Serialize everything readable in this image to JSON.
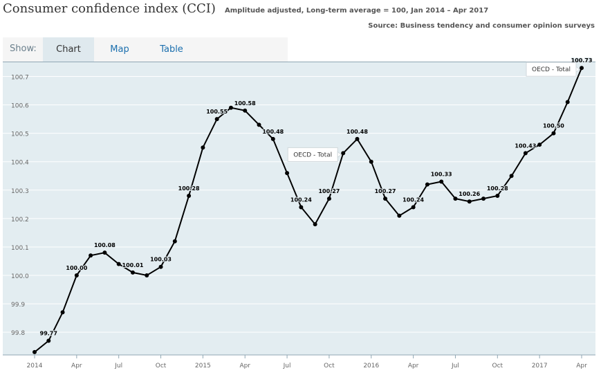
{
  "header": {
    "title": "Consumer confidence index (CCI)",
    "subtitle": "Amplitude adjusted, Long-term average = 100, Jan 2014 – Apr 2017",
    "source": "Source: Business tendency and consumer opinion surveys"
  },
  "tabs": {
    "show_label": "Show:",
    "items": [
      {
        "label": "Chart",
        "active": true
      },
      {
        "label": "Map",
        "active": false
      },
      {
        "label": "Table",
        "active": false
      }
    ]
  },
  "colors": {
    "plot_background": "#e3edf1",
    "line": "#000000",
    "gridline": "#ffffff",
    "tab_link": "#1b6fae"
  },
  "chart_data": {
    "type": "line",
    "grid": true,
    "x_ticks": [
      "2014",
      "Apr",
      "Jul",
      "Oct",
      "2015",
      "Apr",
      "Jul",
      "Oct",
      "2016",
      "Apr",
      "Jul",
      "Oct",
      "2017",
      "Apr"
    ],
    "y_ticks": [
      "99.8",
      "99.9",
      "100.0",
      "100.1",
      "100.2",
      "100.3",
      "100.4",
      "100.5",
      "100.6",
      "100.7"
    ],
    "ylim": [
      99.72,
      100.75
    ],
    "series": [
      {
        "name": "OECD - Total",
        "x": [
          "2014-01",
          "2014-02",
          "2014-03",
          "2014-04",
          "2014-05",
          "2014-06",
          "2014-07",
          "2014-08",
          "2014-09",
          "2014-10",
          "2014-11",
          "2014-12",
          "2015-01",
          "2015-02",
          "2015-03",
          "2015-04",
          "2015-05",
          "2015-06",
          "2015-07",
          "2015-08",
          "2015-09",
          "2015-10",
          "2015-11",
          "2015-12",
          "2016-01",
          "2016-02",
          "2016-03",
          "2016-04",
          "2016-05",
          "2016-06",
          "2016-07",
          "2016-08",
          "2016-09",
          "2016-10",
          "2016-11",
          "2016-12",
          "2017-01",
          "2017-02",
          "2017-03",
          "2017-04"
        ],
        "values": [
          99.73,
          99.77,
          99.87,
          100.0,
          100.07,
          100.08,
          100.04,
          100.01,
          100.0,
          100.03,
          100.12,
          100.28,
          100.45,
          100.55,
          100.59,
          100.58,
          100.53,
          100.48,
          100.36,
          100.24,
          100.18,
          100.27,
          100.43,
          100.48,
          100.4,
          100.27,
          100.21,
          100.24,
          100.32,
          100.33,
          100.27,
          100.26,
          100.27,
          100.28,
          100.35,
          100.43,
          100.46,
          100.5,
          100.61,
          100.73
        ]
      }
    ],
    "data_labels": [
      {
        "index": 1,
        "text": "99.77"
      },
      {
        "index": 3,
        "text": "100.00"
      },
      {
        "index": 5,
        "text": "100.08"
      },
      {
        "index": 7,
        "text": "100.01"
      },
      {
        "index": 9,
        "text": "100.03"
      },
      {
        "index": 11,
        "text": "100.28"
      },
      {
        "index": 13,
        "text": "100.55"
      },
      {
        "index": 15,
        "text": "100.58"
      },
      {
        "index": 17,
        "text": "100.48"
      },
      {
        "index": 19,
        "text": "100.24"
      },
      {
        "index": 21,
        "text": "100.27"
      },
      {
        "index": 23,
        "text": "100.48"
      },
      {
        "index": 25,
        "text": "100.27"
      },
      {
        "index": 27,
        "text": "100.24"
      },
      {
        "index": 29,
        "text": "100.33"
      },
      {
        "index": 31,
        "text": "100.26"
      },
      {
        "index": 33,
        "text": "100.28"
      },
      {
        "index": 35,
        "text": "100.43"
      },
      {
        "index": 37,
        "text": "100.50"
      },
      {
        "index": 39,
        "text": "100.73"
      }
    ],
    "callouts": [
      {
        "index": 22,
        "text": "OECD - Total"
      },
      {
        "index": 39,
        "text": "OECD - Total"
      }
    ]
  }
}
